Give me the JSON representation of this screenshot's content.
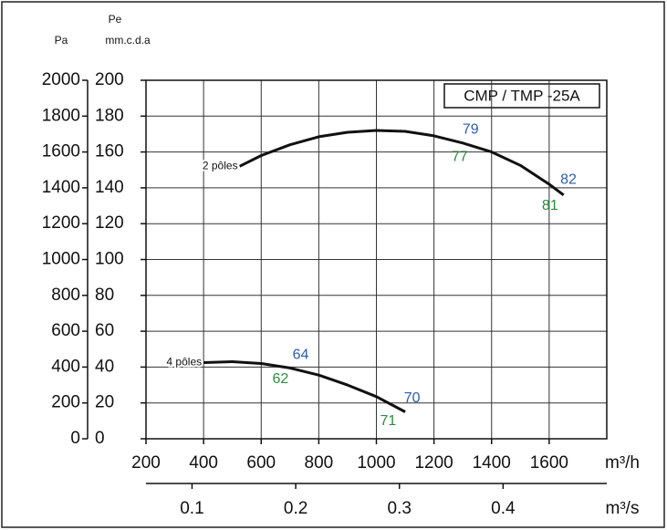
{
  "chart_data": {
    "type": "line",
    "title": "CMP / TMP -25A",
    "ylabel": "Pa",
    "y2label_top": "Pe",
    "y2label": "mm.c.d.a",
    "xlabel": "m³/h",
    "x2label": "m³/s",
    "xlim": [
      200,
      1800
    ],
    "xticks": [
      200,
      400,
      600,
      800,
      1000,
      1200,
      1400,
      1600
    ],
    "x2lim": [
      0.0556,
      0.5
    ],
    "x2ticks": [
      0.1,
      0.2,
      0.3,
      0.4
    ],
    "ylim": [
      0,
      2000
    ],
    "yticks": [
      0,
      200,
      400,
      600,
      800,
      1000,
      1200,
      1400,
      1600,
      1800,
      2000
    ],
    "y2lim": [
      0,
      200
    ],
    "y2ticks": [
      0,
      20,
      40,
      60,
      80,
      100,
      120,
      140,
      160,
      180,
      200
    ],
    "grid": true,
    "series": [
      {
        "name": "2 pôles",
        "color": "#111111",
        "x": [
          525,
          600,
          700,
          800,
          900,
          1000,
          1100,
          1200,
          1300,
          1400,
          1500,
          1600,
          1650
        ],
        "values": [
          1520,
          1580,
          1640,
          1685,
          1710,
          1720,
          1715,
          1690,
          1650,
          1600,
          1525,
          1420,
          1360
        ]
      },
      {
        "name": "4 pôles",
        "color": "#111111",
        "x": [
          400,
          500,
          600,
          700,
          800,
          900,
          1000,
          1100
        ],
        "values": [
          425,
          430,
          420,
          395,
          355,
          300,
          235,
          150
        ]
      }
    ],
    "annotations": [
      {
        "text": "79",
        "x": 1327,
        "y": 1725,
        "color": "#2a5db0"
      },
      {
        "text": "77",
        "x": 1289,
        "y": 1572,
        "color": "#2e8b3e"
      },
      {
        "text": "82",
        "x": 1667,
        "y": 1445,
        "color": "#2a5db0"
      },
      {
        "text": "81",
        "x": 1603,
        "y": 1298,
        "color": "#2e8b3e"
      },
      {
        "text": "64",
        "x": 737,
        "y": 468,
        "color": "#2a5db0"
      },
      {
        "text": "62",
        "x": 667,
        "y": 331,
        "color": "#2e8b3e"
      },
      {
        "text": "70",
        "x": 1124,
        "y": 224,
        "color": "#2a5db0"
      },
      {
        "text": "71",
        "x": 1041,
        "y": 97,
        "color": "#2e8b3e"
      }
    ]
  }
}
